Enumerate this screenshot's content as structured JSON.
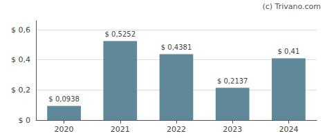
{
  "chart_data": {
    "type": "bar",
    "categories": [
      "2020",
      "2021",
      "2022",
      "2023",
      "2024"
    ],
    "values": [
      0.0938,
      0.5252,
      0.4381,
      0.2137,
      0.41
    ],
    "value_labels": [
      "$ 0,0938",
      "$ 0,5252",
      "$ 0,4381",
      "$ 0,2137",
      "$ 0,41"
    ],
    "data_labels": true,
    "color": "#5f8899",
    "ylim": [
      0,
      0.66
    ],
    "yticks": [
      {
        "value": 0,
        "label": "$ 0"
      },
      {
        "value": 0.2,
        "label": "$ 0,2"
      },
      {
        "value": 0.4,
        "label": "$ 0,4"
      },
      {
        "value": 0.6,
        "label": "$ 0,6"
      }
    ],
    "grid": true,
    "annotations": [
      "(c) Trivano.com"
    ]
  }
}
